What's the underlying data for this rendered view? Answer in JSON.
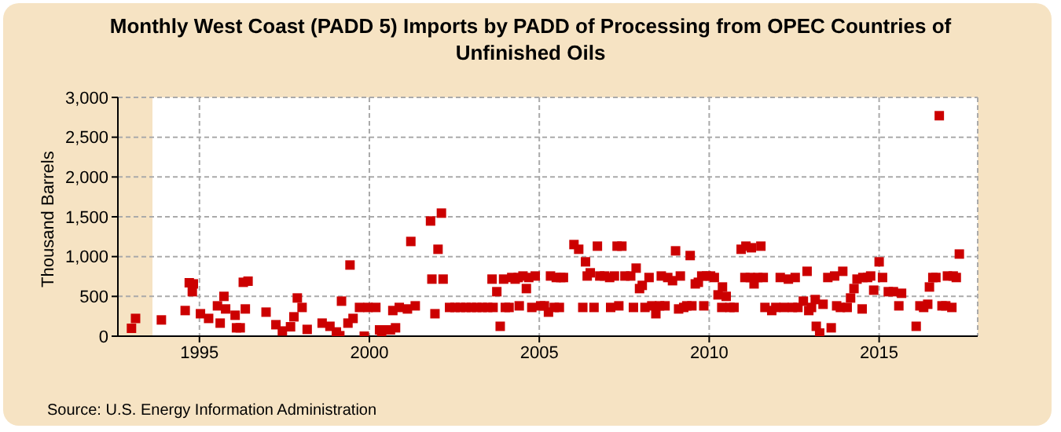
{
  "chart_data": {
    "type": "scatter",
    "title": "Monthly West Coast (PADD 5) Imports by PADD of Processing from OPEC Countries of Unfinished Oils",
    "ylabel": "Thousand Barrels",
    "annotations": [
      "Source: U.S. Energy Information Administration"
    ],
    "marker": "square",
    "grid": true,
    "legend": false,
    "xlim": [
      1992.6,
      2017.9
    ],
    "xticks": [
      1995,
      2000,
      2005,
      2010,
      2015
    ],
    "ylim": [
      0,
      3000
    ],
    "yticks": [
      0,
      500,
      {
        "value": 1000,
        "label": "1,000"
      },
      {
        "value": 1500,
        "label": "1,500"
      },
      {
        "value": 2000,
        "label": "2,000"
      },
      {
        "value": 2500,
        "label": "2,500"
      },
      {
        "value": 3000,
        "label": "3,000"
      }
    ],
    "series": [
      {
        "color": "#cc0000",
        "x": [
          1993.0,
          1993.12,
          1993.88,
          1994.58,
          1994.7,
          1994.79,
          1994.82,
          1995.03,
          1995.27,
          1995.53,
          1995.61,
          1995.72,
          1995.77,
          1996.05,
          1996.09,
          1996.2,
          1996.29,
          1996.35,
          1996.43,
          1996.96,
          1997.25,
          1997.44,
          1997.68,
          1997.78,
          1997.88,
          1998.02,
          1998.17,
          1998.61,
          1998.84,
          1999.03,
          1999.13,
          1999.18,
          1999.37,
          1999.43,
          1999.52,
          1999.71,
          1999.85,
          1999.96,
          2000.19,
          2000.3,
          2000.36,
          2000.53,
          2000.62,
          2000.69,
          2000.77,
          2000.88,
          2001.12,
          2001.22,
          2001.35,
          2001.8,
          2001.84,
          2001.93,
          2002.02,
          2002.12,
          2002.17,
          2002.36,
          2002.52,
          2002.68,
          2002.84,
          2003.0,
          2003.16,
          2003.32,
          2003.48,
          2003.61,
          2003.64,
          2003.75,
          2003.85,
          2003.95,
          2004.0,
          2004.11,
          2004.19,
          2004.29,
          2004.38,
          2004.41,
          2004.52,
          2004.62,
          2004.69,
          2004.78,
          2004.88,
          2005.04,
          2005.15,
          2005.27,
          2005.33,
          2005.44,
          2005.5,
          2005.59,
          2005.63,
          2005.71,
          2006.02,
          2006.16,
          2006.28,
          2006.36,
          2006.41,
          2006.5,
          2006.61,
          2006.71,
          2006.78,
          2006.92,
          2007.07,
          2007.1,
          2007.21,
          2007.29,
          2007.34,
          2007.43,
          2007.52,
          2007.69,
          2007.77,
          2007.85,
          2007.95,
          2008.03,
          2008.11,
          2008.23,
          2008.31,
          2008.43,
          2008.54,
          2008.59,
          2008.7,
          2008.78,
          2008.92,
          2009.01,
          2009.1,
          2009.15,
          2009.25,
          2009.34,
          2009.44,
          2009.49,
          2009.59,
          2009.68,
          2009.78,
          2009.84,
          2009.92,
          2010.04,
          2010.15,
          2010.26,
          2010.37,
          2010.39,
          2010.5,
          2010.61,
          2010.73,
          2010.94,
          2011.05,
          2011.08,
          2011.21,
          2011.24,
          2011.32,
          2011.43,
          2011.52,
          2011.59,
          2011.64,
          2011.84,
          2011.96,
          2012.09,
          2012.2,
          2012.33,
          2012.45,
          2012.53,
          2012.61,
          2012.77,
          2012.88,
          2012.93,
          2013.01,
          2013.12,
          2013.15,
          2013.25,
          2013.35,
          2013.49,
          2013.59,
          2013.69,
          2013.75,
          2013.86,
          2013.93,
          2014.06,
          2014.16,
          2014.26,
          2014.35,
          2014.5,
          2014.52,
          2014.66,
          2014.75,
          2014.84,
          2015.0,
          2015.1,
          2015.27,
          2015.42,
          2015.58,
          2015.66,
          2016.09,
          2016.2,
          2016.31,
          2016.43,
          2016.48,
          2016.58,
          2016.67,
          2016.77,
          2016.85,
          2016.96,
          2017.01,
          2017.14,
          2017.18,
          2017.27,
          2017.36
        ],
        "values": [
          99,
          223,
          204,
          322,
          671,
          559,
          657,
          282,
          223,
          381,
          164,
          500,
          342,
          263,
          105,
          105,
          677,
          342,
          691,
          302,
          144,
          65,
          118,
          243,
          480,
          361,
          85,
          164,
          124,
          53,
          6,
          440,
          164,
          894,
          223,
          361,
          0,
          361,
          361,
          79,
          13,
          79,
          79,
          322,
          105,
          361,
          342,
          1190,
          381,
          1447,
          717,
          282,
          1092,
          1546,
          717,
          361,
          361,
          361,
          361,
          361,
          361,
          361,
          361,
          717,
          361,
          559,
          124,
          717,
          361,
          361,
          737,
          717,
          737,
          381,
          756,
          598,
          737,
          361,
          756,
          381,
          381,
          302,
          756,
          361,
          737,
          361,
          737,
          737,
          1151,
          1092,
          361,
          934,
          756,
          796,
          361,
          1131,
          756,
          756,
          737,
          361,
          756,
          1131,
          381,
          1131,
          756,
          756,
          361,
          855,
          598,
          638,
          361,
          737,
          381,
          282,
          381,
          756,
          381,
          737,
          697,
          1072,
          342,
          756,
          361,
          381,
          1013,
          381,
          657,
          677,
          756,
          381,
          756,
          756,
          737,
          519,
          361,
          618,
          500,
          361,
          361,
          1092,
          737,
          1131,
          737,
          1111,
          657,
          737,
          1131,
          737,
          361,
          322,
          361,
          737,
          361,
          717,
          361,
          737,
          361,
          440,
          815,
          322,
          361,
          460,
          124,
          39,
          401,
          737,
          105,
          756,
          381,
          361,
          815,
          361,
          480,
          598,
          717,
          342,
          737,
          737,
          756,
          578,
          934,
          737,
          559,
          559,
          381,
          539,
          124,
          381,
          361,
          401,
          618,
          737,
          737,
          2770,
          381,
          381,
          756,
          361,
          756,
          737,
          1032
        ]
      }
    ]
  }
}
